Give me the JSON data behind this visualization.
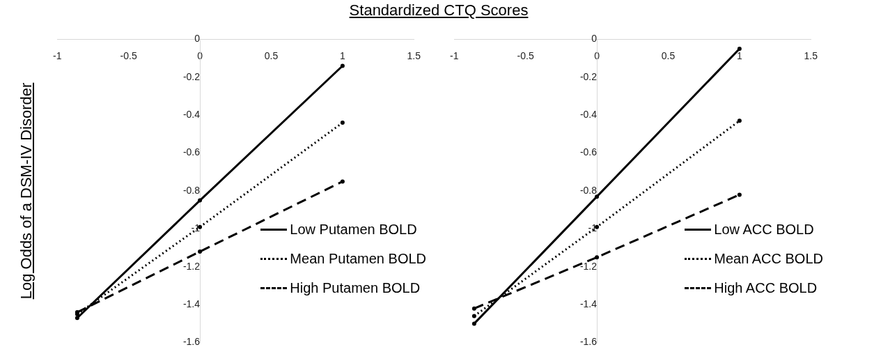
{
  "chart_data": [
    {
      "type": "line",
      "xlabel": "Standardized CTQ Scores",
      "ylabel": "Log Odds of a DSM-IV Disorder",
      "x": [
        -0.86,
        0,
        1
      ],
      "series": [
        {
          "name": "Low Putamen BOLD",
          "color": "#000000",
          "line_style": "solid",
          "values": [
            -1.47,
            -0.85,
            -0.14
          ]
        },
        {
          "name": "Mean Putamen BOLD",
          "color": "#000000",
          "line_style": "dotted",
          "values": [
            -1.45,
            -0.99,
            -0.44
          ]
        },
        {
          "name": "High Putamen BOLD",
          "color": "#000000",
          "line_style": "dashed",
          "values": [
            -1.44,
            -1.12,
            -0.75
          ]
        }
      ],
      "xlim": [
        -1,
        1.5
      ],
      "xticks": [
        -1,
        -0.5,
        0,
        0.5,
        1,
        1.5
      ],
      "ylim": [
        -1.6,
        0
      ],
      "yticks": [
        -1.6,
        -1.4,
        -1.2,
        -1,
        -0.8,
        -0.6,
        -0.4,
        -0.2,
        0
      ],
      "marker": "circle",
      "legend": "bottom right"
    },
    {
      "type": "line",
      "x": [
        -0.86,
        0,
        1
      ],
      "series": [
        {
          "name": "Low ACC BOLD",
          "color": "#000000",
          "line_style": "solid",
          "values": [
            -1.5,
            -0.83,
            -0.05
          ]
        },
        {
          "name": "Mean ACC BOLD",
          "color": "#000000",
          "line_style": "dotted",
          "values": [
            -1.46,
            -0.99,
            -0.43
          ]
        },
        {
          "name": "High ACC BOLD",
          "color": "#000000",
          "line_style": "dashed",
          "values": [
            -1.42,
            -1.15,
            -0.82
          ]
        }
      ],
      "xlim": [
        -1,
        1.5
      ],
      "xticks": [
        -1,
        -0.5,
        0,
        0.5,
        1,
        1.5
      ],
      "ylim": [
        -1.6,
        0
      ],
      "yticks": [
        -1.6,
        -1.4,
        -1.2,
        -1,
        -0.8,
        -0.6,
        -0.4,
        -0.2,
        0
      ],
      "marker": "circle",
      "legend": "bottom right"
    }
  ]
}
